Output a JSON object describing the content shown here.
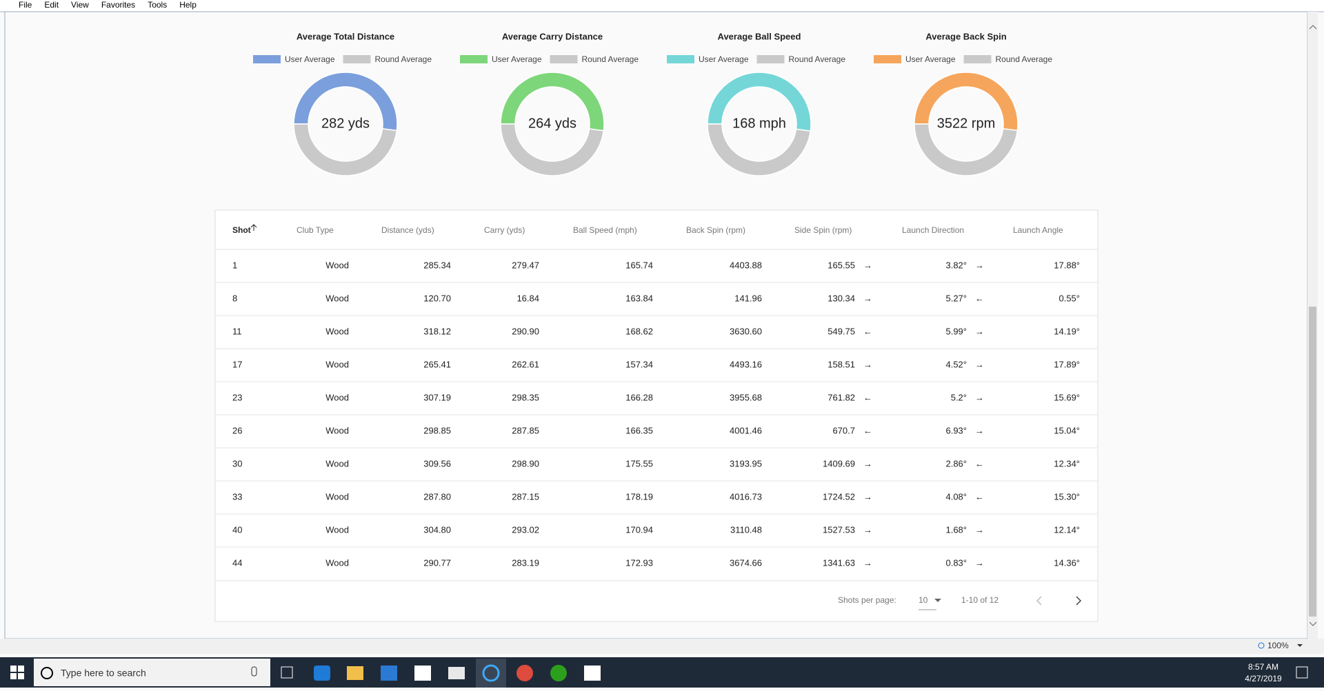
{
  "menu": [
    "File",
    "Edit",
    "View",
    "Favorites",
    "Tools",
    "Help"
  ],
  "charts": [
    {
      "type": "doughnut",
      "title": "Average Total Distance",
      "categories": [
        "User Average",
        "Round Average"
      ],
      "values": [
        282,
        260
      ],
      "colors": [
        "#7b9fdc",
        "#c9c9c9"
      ],
      "center_label": "282 yds"
    },
    {
      "type": "doughnut",
      "title": "Average Carry Distance",
      "categories": [
        "User Average",
        "Round Average"
      ],
      "values": [
        264,
        243
      ],
      "colors": [
        "#7ed67a",
        "#c9c9c9"
      ],
      "center_label": "264 yds"
    },
    {
      "type": "doughnut",
      "title": "Average Ball Speed",
      "categories": [
        "User Average",
        "Round Average"
      ],
      "values": [
        168,
        154
      ],
      "colors": [
        "#75d6d8",
        "#c9c9c9"
      ],
      "center_label": "168 mph"
    },
    {
      "type": "doughnut",
      "title": "Average Back Spin",
      "categories": [
        "User Average",
        "Round Average"
      ],
      "values": [
        3522,
        3250
      ],
      "colors": [
        "#f5a55c",
        "#c9c9c9"
      ],
      "center_label": "3522 rpm"
    }
  ],
  "table": {
    "header": [
      "Shot",
      "Club Type",
      "Distance (yds)",
      "Carry (yds)",
      "Ball Speed (mph)",
      "Back Spin (rpm)",
      "Side Spin (rpm)",
      "Launch Direction",
      "Launch Angle"
    ],
    "rows": [
      [
        "1",
        "Wood",
        "285.34",
        "279.47",
        "165.74",
        "4403.88",
        "165.55",
        "→",
        "3.82°",
        "→",
        "17.88°"
      ],
      [
        "8",
        "Wood",
        "120.70",
        "16.84",
        "163.84",
        "141.96",
        "130.34",
        "→",
        "5.27°",
        "←",
        "0.55°"
      ],
      [
        "11",
        "Wood",
        "318.12",
        "290.90",
        "168.62",
        "3630.60",
        "549.75",
        "←",
        "5.99°",
        "→",
        "14.19°"
      ],
      [
        "17",
        "Wood",
        "265.41",
        "262.61",
        "157.34",
        "4493.16",
        "158.51",
        "→",
        "4.52°",
        "→",
        "17.89°"
      ],
      [
        "23",
        "Wood",
        "307.19",
        "298.35",
        "166.28",
        "3955.68",
        "761.82",
        "←",
        "5.2°",
        "→",
        "15.69°"
      ],
      [
        "26",
        "Wood",
        "298.85",
        "287.85",
        "166.35",
        "4001.46",
        "670.7",
        "←",
        "6.93°",
        "→",
        "15.04°"
      ],
      [
        "30",
        "Wood",
        "309.56",
        "298.90",
        "175.55",
        "3193.95",
        "1409.69",
        "→",
        "2.86°",
        "←",
        "12.34°"
      ],
      [
        "33",
        "Wood",
        "287.80",
        "287.15",
        "178.19",
        "4016.73",
        "1724.52",
        "→",
        "4.08°",
        "←",
        "15.30°"
      ],
      [
        "40",
        "Wood",
        "304.80",
        "293.02",
        "170.94",
        "3110.48",
        "1527.53",
        "→",
        "1.68°",
        "→",
        "12.14°"
      ],
      [
        "44",
        "Wood",
        "290.77",
        "283.19",
        "172.93",
        "3674.66",
        "1341.63",
        "→",
        "0.83°",
        "→",
        "14.36°"
      ]
    ],
    "footer": {
      "per_page_label": "Shots per page:",
      "per_page": "10",
      "range": "1-10 of 12"
    }
  },
  "status": {
    "zoom": "100%"
  },
  "taskbar": {
    "search": "Type here to search",
    "time": "8:57 AM",
    "date": "4/27/2019"
  }
}
